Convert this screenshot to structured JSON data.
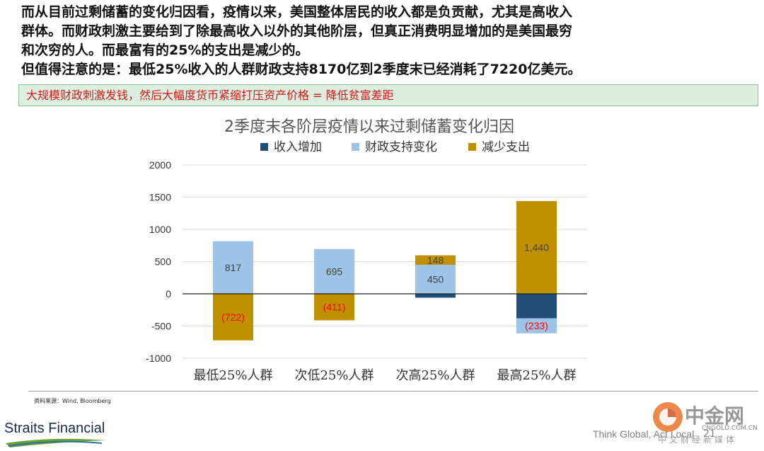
{
  "text": {
    "line1": "而从目前过剩储蓄的变化归因看，疫情以来，美国整体居民的收入都是负贡献，尤其是高收入",
    "line2": "群体。而财政刺激主要给到了除最高收入以外的其他阶层，但真正消费明显增加的是美国最穷",
    "line3": "和次穷的人。而最富有的25%的支出是减少的。",
    "line4": "但值得注意的是：最低25%收入的人群财政支持8170亿到2季度末已经消耗了7220亿美元。"
  },
  "banner": "大规模财政刺激发钱，然后大幅度货币紧缩打压资产价格 = 降低贫富差距",
  "chart_data": {
    "type": "bar",
    "stacked": true,
    "title": "2季度末各阶层疫情以来过剩储蓄变化归因",
    "categories": [
      "最低25%人群",
      "次低25%人群",
      "次高25%人群",
      "最高25%人群"
    ],
    "series": [
      {
        "name": "收入增加",
        "color": "#1f4e79",
        "values": [
          0,
          0,
          -60,
          -380
        ],
        "labels": [
          "",
          "",
          "",
          ""
        ]
      },
      {
        "name": "财政支持变化",
        "color": "#9dc3e6",
        "values": [
          817,
          695,
          450,
          -233
        ],
        "labels": [
          "817",
          "695",
          "450",
          "(233)"
        ]
      },
      {
        "name": "减少支出",
        "color": "#bf9000",
        "values": [
          -722,
          -411,
          148,
          1440
        ],
        "labels": [
          "(722)",
          "(411)",
          "148",
          "1,440"
        ]
      }
    ],
    "ylim": [
      -1000,
      2000
    ],
    "yticks": [
      "2000",
      "1500",
      "1000",
      "500",
      "0",
      "-500",
      "-1000"
    ],
    "legend_position": "top",
    "grid": true
  },
  "source": "资料来源：Wind, Bloomberg",
  "footer": {
    "brand": "Straits Financial",
    "tagline": "Think Global, Act Local",
    "page_number": "21",
    "watermark_name": "中金网",
    "watermark_url": "CNGOLD.COM.CN",
    "watermark_sub": "中文财经新媒体"
  }
}
